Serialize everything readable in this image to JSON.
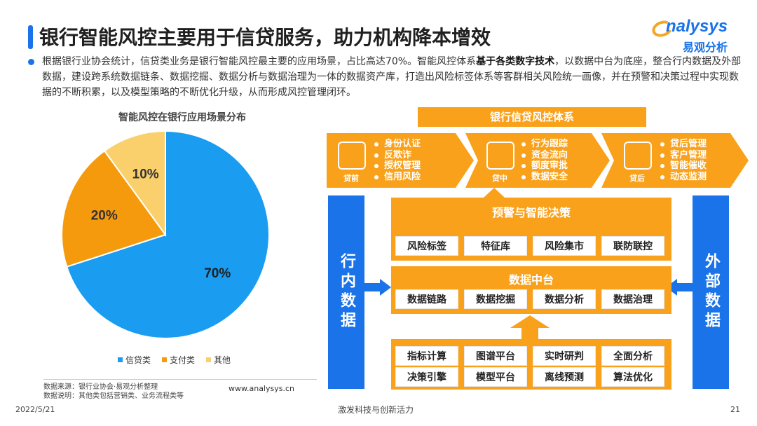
{
  "header": {
    "title": "银行智能风控主要用于信贷服务，助力机构降本增效",
    "logo_en": "nalysys",
    "logo_cn": "易观分析"
  },
  "description": {
    "part1": "根据银行业协会统计，信贷类业务是银行智能风控最主要的应用场景，占比高达70%。智能风控体系",
    "bold": "基于各类数字技术",
    "part2": "，以数据中台为底座，整合行内数据及外部数据，建设跨系统数据链条、数据挖掘、数据分析与数据治理为一体的数据资产库，打造出风险标签体系等客群相关风险统一画像，并在预警和决策过程中实现数据的不断积累，以及模型策略的不断优化升级，从而形成风控管理闭环。"
  },
  "chart_data": {
    "type": "pie",
    "title": "智能风控在银行应用场景分布",
    "categories": [
      "信贷类",
      "支付类",
      "其他"
    ],
    "values": [
      70,
      20,
      10
    ],
    "labels": [
      "70%",
      "20%",
      "10%"
    ],
    "colors": [
      "#1a9cf0",
      "#f59a0c",
      "#f9d06b"
    ],
    "legend_position": "bottom"
  },
  "source": {
    "line1": "数据来源：银行业协会·易观分析整理",
    "line2": "数据说明：其他类包括营销类、业务流程类等",
    "website": "www.analysys.cn"
  },
  "footer": {
    "date": "2022/5/21",
    "slogan": "激发科技与创新活力",
    "page": "21"
  },
  "diagram": {
    "system_title": "银行信贷风控体系",
    "stages": [
      {
        "label": "贷前",
        "items": [
          "身份认证",
          "反欺诈",
          "授权管理",
          "信用风险"
        ]
      },
      {
        "label": "贷中",
        "items": [
          "行为跟踪",
          "资金流向",
          "额度审批",
          "数据安全"
        ]
      },
      {
        "label": "贷后",
        "items": [
          "贷后管理",
          "客户管理",
          "智能催收",
          "动态监测"
        ]
      }
    ],
    "left_block": "行内数据",
    "right_block": "外部数据",
    "warning": {
      "title": "预警与智能决策",
      "cells": [
        "风险标签",
        "特征库",
        "风险集市",
        "联防联控"
      ]
    },
    "data_middle": {
      "title": "数据中台",
      "cells": [
        "数据链路",
        "数据挖掘",
        "数据分析",
        "数据治理"
      ]
    },
    "foundation": {
      "cells": [
        "指标计算",
        "图谱平台",
        "实时研判",
        "全面分析",
        "决策引擎",
        "模型平台",
        "离线预测",
        "算法优化"
      ]
    },
    "colors": {
      "orange": "#f9a11b",
      "blue": "#1a73e8"
    }
  }
}
